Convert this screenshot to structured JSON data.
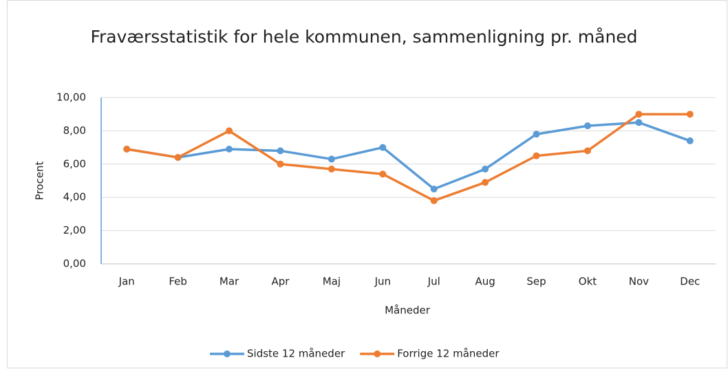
{
  "chart_data": {
    "type": "line",
    "title": "Fraværsstatistik for hele kommunen, sammenligning pr. måned",
    "x_label": "Måneder",
    "y_label": "Procent",
    "categories": [
      "Jan",
      "Feb",
      "Mar",
      "Apr",
      "Maj",
      "Jun",
      "Jul",
      "Aug",
      "Sep",
      "Okt",
      "Nov",
      "Dec"
    ],
    "series": [
      {
        "name": "Sidste 12 måneder",
        "color": "#5b9bd5",
        "values": [
          6.9,
          6.4,
          6.9,
          6.8,
          6.3,
          7.0,
          4.5,
          5.7,
          7.8,
          8.3,
          8.5,
          7.4
        ]
      },
      {
        "name": "Forrige 12 måneder",
        "color": "#ed7d31",
        "values": [
          6.9,
          6.4,
          8.0,
          6.0,
          5.7,
          5.4,
          3.8,
          4.9,
          6.5,
          6.8,
          9.0,
          9.0
        ]
      }
    ],
    "ylim": [
      0,
      10
    ],
    "yticks": [
      {
        "value": 0,
        "label": "0,00"
      },
      {
        "value": 2,
        "label": "2,00"
      },
      {
        "value": 4,
        "label": "4,00"
      },
      {
        "value": 6,
        "label": "6,00"
      },
      {
        "value": 8,
        "label": "8,00"
      },
      {
        "value": 10,
        "label": "10,00"
      }
    ],
    "grid": true,
    "legend": "bottom"
  }
}
